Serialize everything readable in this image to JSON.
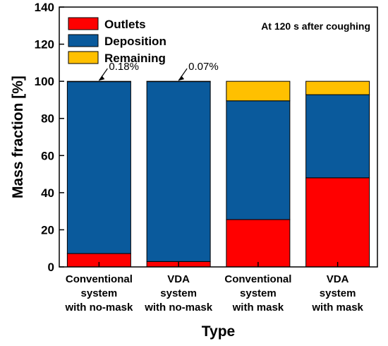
{
  "chart_data": {
    "type": "bar",
    "stacked": true,
    "categories": [
      [
        "Conventional",
        "system",
        "with no-mask"
      ],
      [
        "VDA",
        "system",
        "with no-mask"
      ],
      [
        "Conventional",
        "system",
        "with mask"
      ],
      [
        "VDA",
        "system",
        "with mask"
      ]
    ],
    "series": [
      {
        "name": "Outlets",
        "color": "#ff0000",
        "values": [
          7.2,
          2.9,
          25.5,
          48.0
        ]
      },
      {
        "name": "Deposition",
        "color": "#0a5a9c",
        "values": [
          92.62,
          97.03,
          64.0,
          44.8
        ]
      },
      {
        "name": "Remaining",
        "color": "#ffc000",
        "values": [
          0.18,
          0.07,
          10.5,
          7.2
        ]
      }
    ],
    "annotations": [
      "0.18%",
      "0.07%"
    ],
    "note": "At 120 s after coughing",
    "xlabel": "Type",
    "ylabel": "Mass fraction [%]",
    "ylim": [
      0,
      140
    ],
    "yticks": [
      0,
      20,
      40,
      60,
      80,
      100,
      120,
      140
    ],
    "legend_position": "top-left",
    "grid": false
  }
}
